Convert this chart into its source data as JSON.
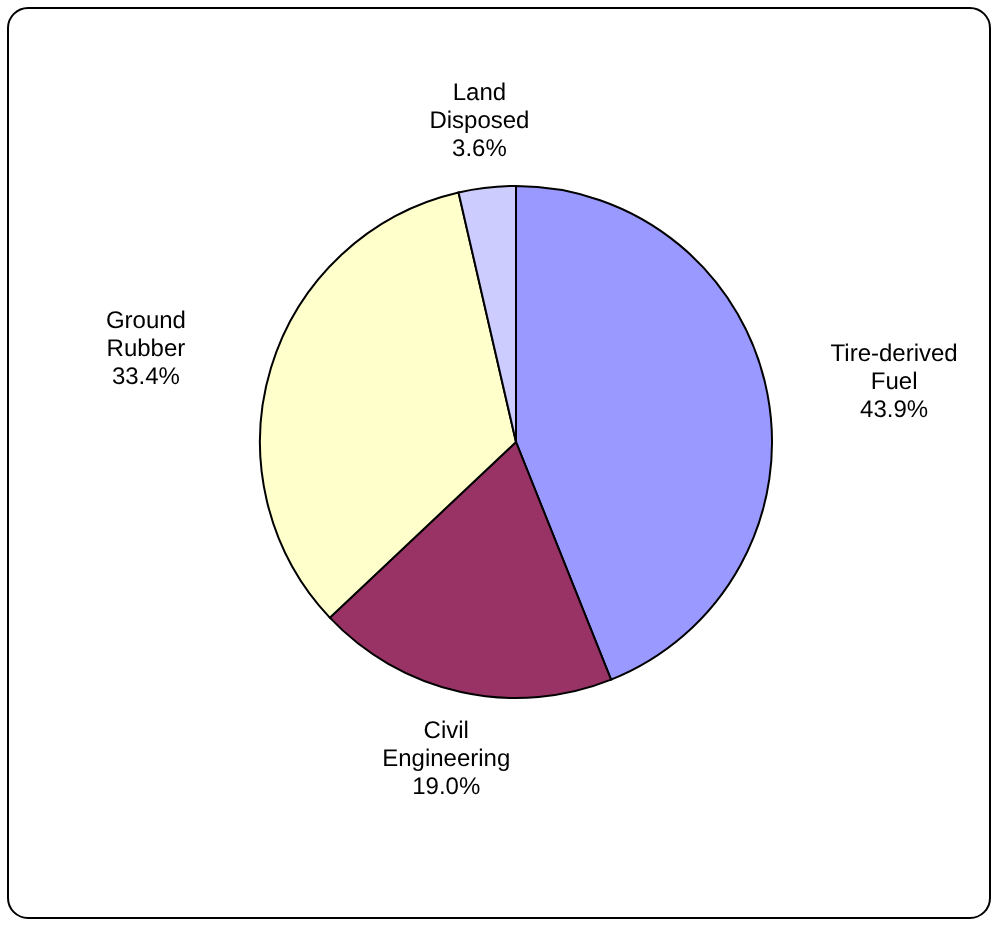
{
  "chart_data": {
    "type": "pie",
    "categories": [
      "Tire-derived Fuel",
      "Civil Engineering",
      "Ground Rubber",
      "Land Disposed"
    ],
    "values": [
      43.9,
      19.0,
      33.4,
      3.6
    ],
    "colors": [
      "#9999ff",
      "#993366",
      "#ffffcc",
      "#ccccff"
    ],
    "value_labels": [
      "43.9%",
      "19.0%",
      "33.4%",
      "3.6%"
    ]
  }
}
